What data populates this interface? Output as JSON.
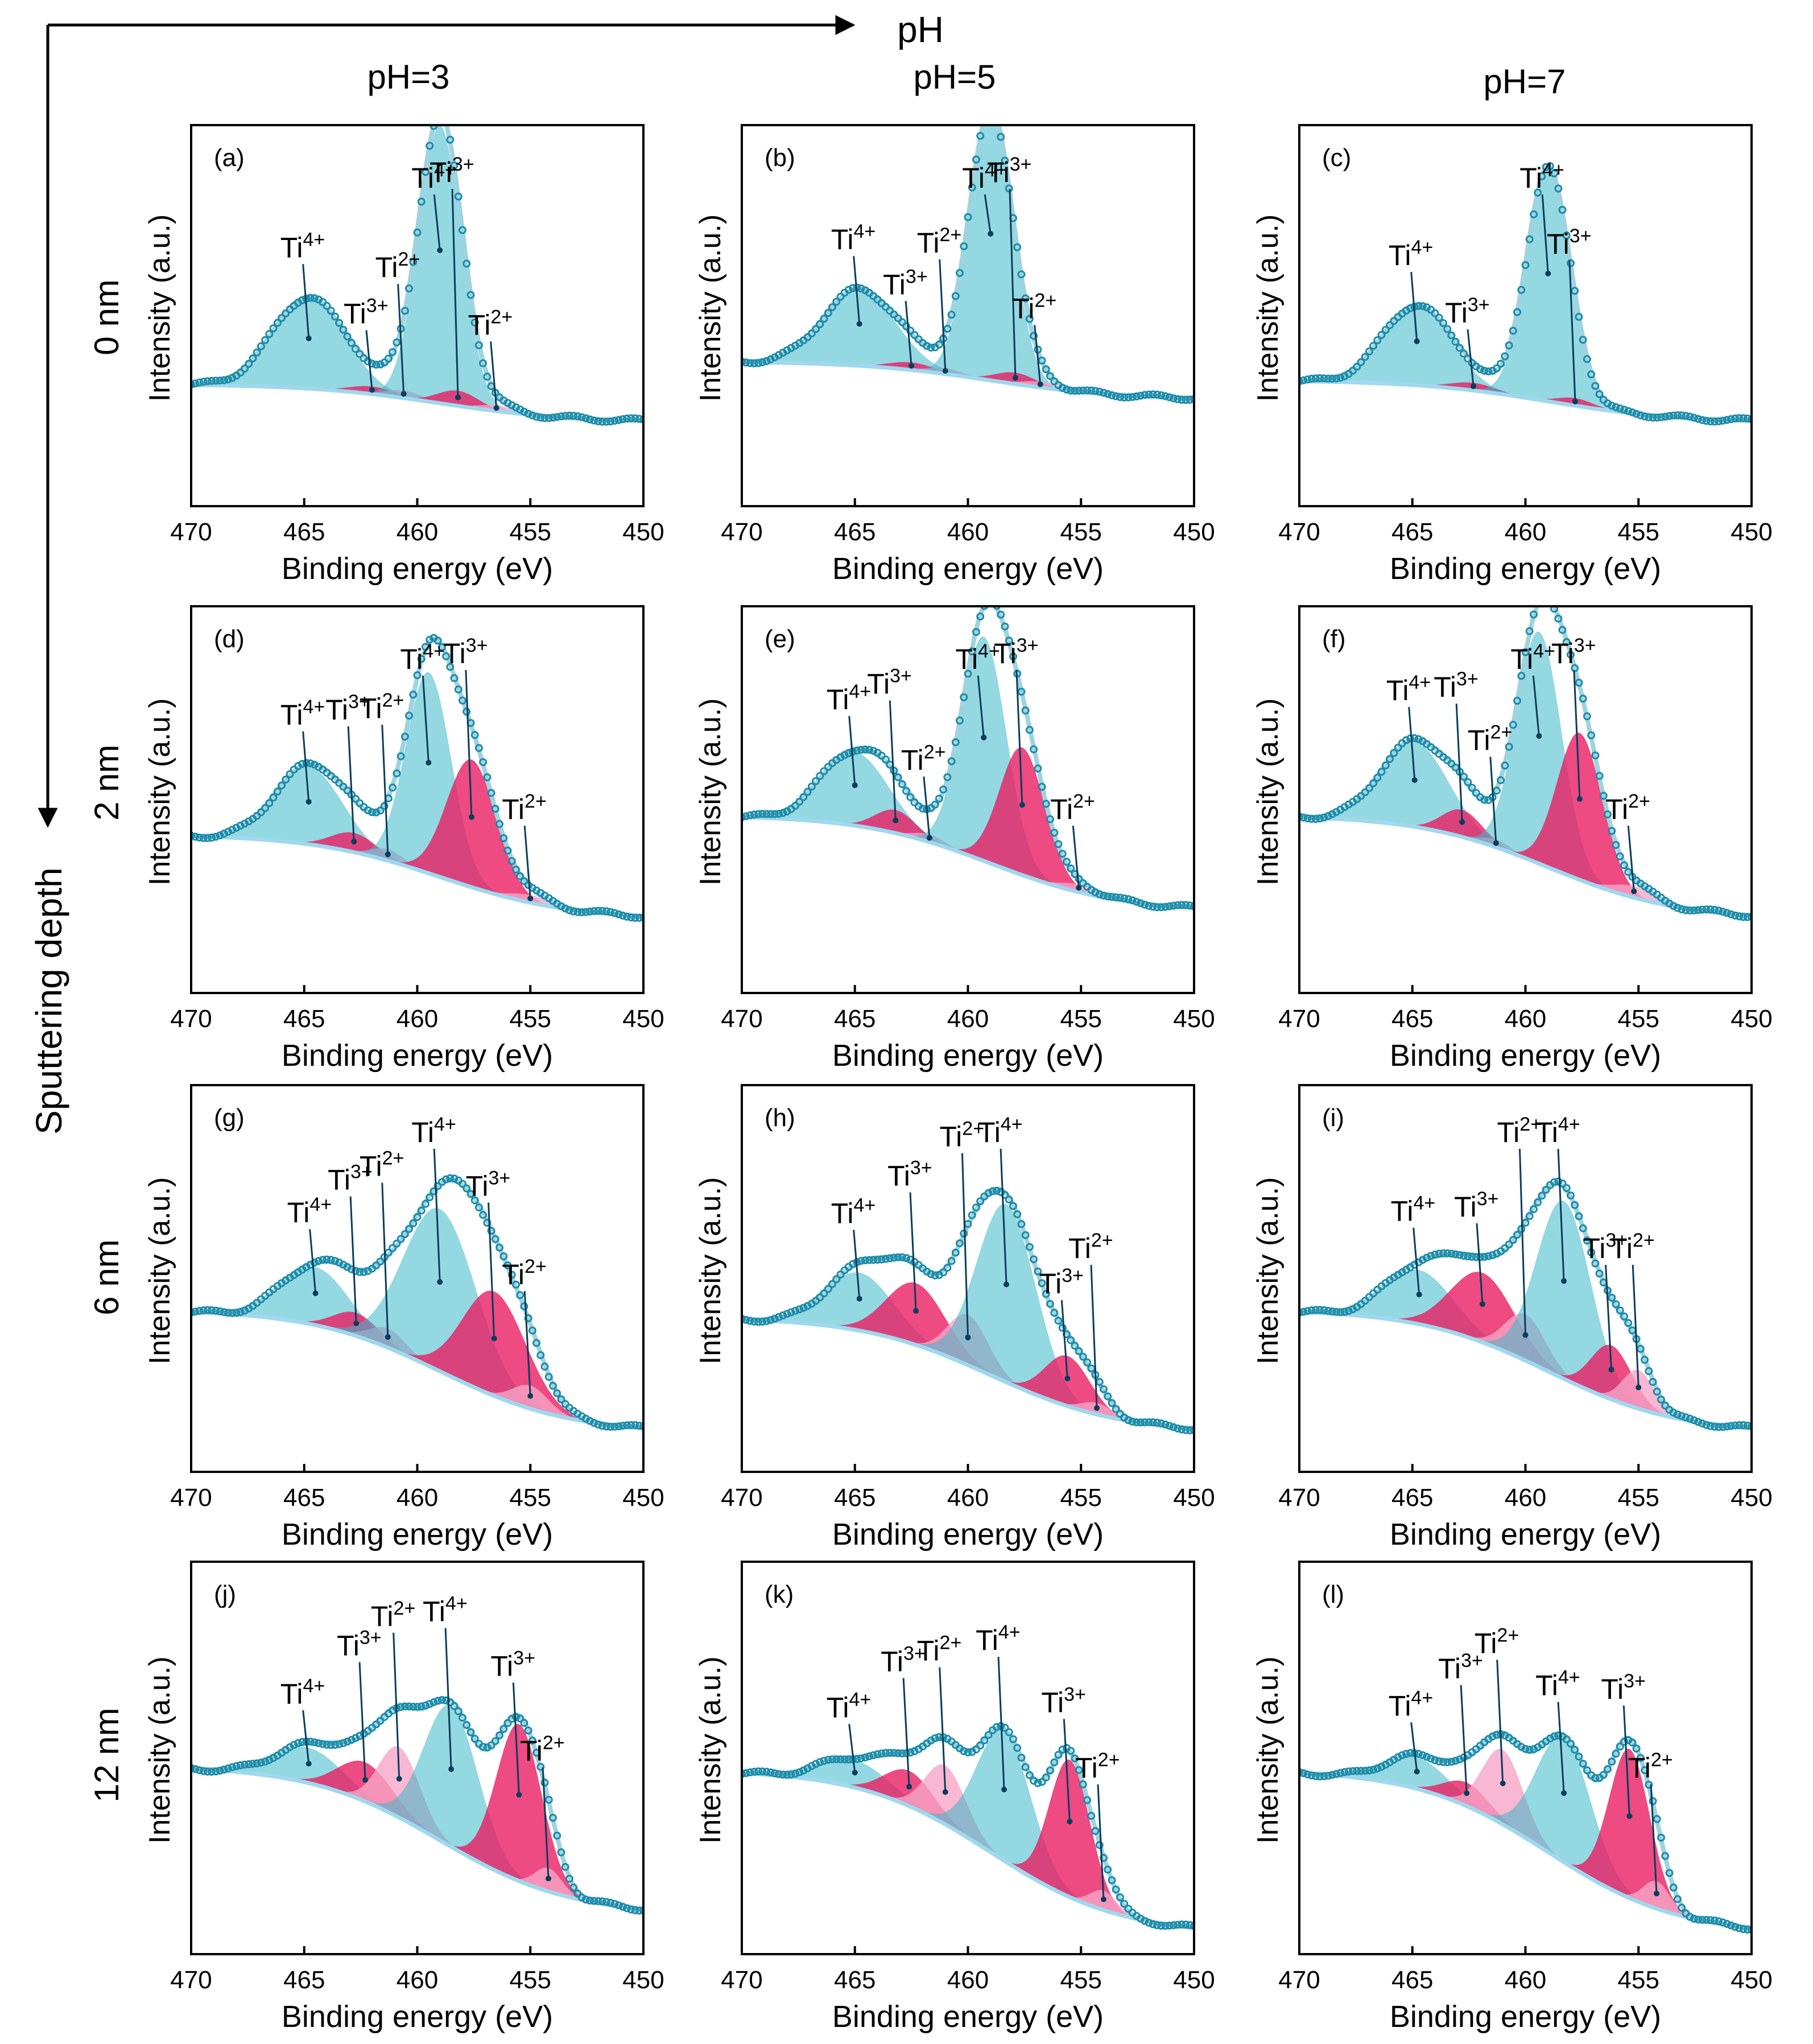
{
  "figure": {
    "ph_axis_label": "pH",
    "depth_axis_label": "Sputtering depth",
    "column_labels": [
      "pH=3",
      "pH=5",
      "pH=7"
    ],
    "row_labels": [
      "0 nm",
      "2 nm",
      "6 nm",
      "12 nm"
    ],
    "xlabel": "Binding energy (eV)",
    "ylabel": "Intensity (a.u.)",
    "xticks": [
      470,
      465,
      460,
      455,
      450
    ],
    "colors": {
      "data_points": "#1b8ba8",
      "fit_envelope": "#9fd3df",
      "background_line": "#9fd8ef",
      "ti4_fill": "#3cb8c9",
      "ti3_fill": "#e91e63",
      "ti2_fill": "#f6a5c7"
    }
  },
  "chart_data": [
    {
      "type": "area",
      "panel": "(a)",
      "ph": "pH=3",
      "depth": "0 nm",
      "xlim": [
        470,
        450
      ],
      "ylim": [
        0,
        1
      ],
      "baseline": {
        "left": 0.32,
        "right": 0.22
      },
      "peaks": [
        {
          "state": "Ti4+",
          "label": "Ti",
          "sup": "4+",
          "center": 464.8,
          "height": 0.24,
          "width": 1.6
        },
        {
          "state": "Ti3+",
          "label": "Ti",
          "sup": "3+",
          "center": 462.0,
          "height": 0.02,
          "width": 1.0
        },
        {
          "state": "Ti2+",
          "label": "Ti",
          "sup": "2+",
          "center": 460.6,
          "height": 0.02,
          "width": 0.8
        },
        {
          "state": "Ti4+",
          "label": "Ti",
          "sup": "4+",
          "center": 459.0,
          "height": 0.73,
          "width": 0.95
        },
        {
          "state": "Ti3+",
          "label": "Ti",
          "sup": "3+",
          "center": 458.2,
          "height": 0.04,
          "width": 0.9
        },
        {
          "state": "Ti2+",
          "label": "Ti",
          "sup": "2+",
          "center": 456.5,
          "height": 0.015,
          "width": 0.8
        }
      ]
    },
    {
      "type": "area",
      "panel": "(b)",
      "ph": "pH=5",
      "depth": "0 nm",
      "xlim": [
        470,
        450
      ],
      "ylim": [
        0,
        1
      ],
      "baseline": {
        "left": 0.38,
        "right": 0.28
      },
      "peaks": [
        {
          "state": "Ti4+",
          "label": "Ti",
          "sup": "4+",
          "center": 464.8,
          "height": 0.2,
          "width": 1.6
        },
        {
          "state": "Ti3+",
          "label": "Ti",
          "sup": "3+",
          "center": 462.5,
          "height": 0.02,
          "width": 1.0
        },
        {
          "state": "Ti2+",
          "label": "Ti",
          "sup": "2+",
          "center": 461.0,
          "height": 0.015,
          "width": 0.8
        },
        {
          "state": "Ti4+",
          "label": "Ti",
          "sup": "4+",
          "center": 459.0,
          "height": 0.7,
          "width": 0.95
        },
        {
          "state": "Ti3+",
          "label": "Ti",
          "sup": "3+",
          "center": 457.9,
          "height": 0.03,
          "width": 0.9
        },
        {
          "state": "Ti2+",
          "label": "Ti",
          "sup": "2+",
          "center": 456.8,
          "height": 0.015,
          "width": 0.8
        }
      ]
    },
    {
      "type": "area",
      "panel": "(c)",
      "ph": "pH=7",
      "depth": "0 nm",
      "xlim": [
        470,
        450
      ],
      "ylim": [
        0,
        1
      ],
      "baseline": {
        "left": 0.33,
        "right": 0.22
      },
      "peaks": [
        {
          "state": "Ti4+",
          "label": "Ti",
          "sup": "4+",
          "center": 464.8,
          "height": 0.21,
          "width": 1.5
        },
        {
          "state": "Ti3+",
          "label": "Ti",
          "sup": "3+",
          "center": 462.3,
          "height": 0.02,
          "width": 1.0
        },
        {
          "state": "Ti4+",
          "label": "Ti",
          "sup": "4+",
          "center": 459.0,
          "height": 0.61,
          "width": 0.95
        },
        {
          "state": "Ti3+",
          "label": "Ti",
          "sup": "3+",
          "center": 457.8,
          "height": 0.02,
          "width": 0.8
        }
      ]
    },
    {
      "type": "area",
      "panel": "(d)",
      "ph": "pH=3",
      "depth": "2 nm",
      "xlim": [
        470,
        450
      ],
      "ylim": [
        0,
        1
      ],
      "baseline": {
        "left": 0.41,
        "right": 0.19
      },
      "peaks": [
        {
          "state": "Ti4+",
          "label": "Ti",
          "sup": "4+",
          "center": 464.8,
          "height": 0.2,
          "width": 1.5
        },
        {
          "state": "Ti3+",
          "label": "Ti",
          "sup": "3+",
          "center": 462.8,
          "height": 0.05,
          "width": 1.0
        },
        {
          "state": "Ti2+",
          "label": "Ti",
          "sup": "2+",
          "center": 461.3,
          "height": 0.03,
          "width": 0.7
        },
        {
          "state": "Ti4+",
          "label": "Ti",
          "sup": "4+",
          "center": 459.5,
          "height": 0.52,
          "width": 1.0
        },
        {
          "state": "Ti3+",
          "label": "Ti",
          "sup": "3+",
          "center": 457.6,
          "height": 0.33,
          "width": 1.1
        },
        {
          "state": "Ti2+",
          "label": "Ti",
          "sup": "2+",
          "center": 455.0,
          "height": 0.02,
          "width": 0.9
        }
      ]
    },
    {
      "type": "area",
      "panel": "(e)",
      "ph": "pH=5",
      "depth": "2 nm",
      "xlim": [
        470,
        450
      ],
      "ylim": [
        0,
        1
      ],
      "baseline": {
        "left": 0.46,
        "right": 0.21
      },
      "peaks": [
        {
          "state": "Ti4+",
          "label": "Ti",
          "sup": "4+",
          "center": 465.0,
          "height": 0.19,
          "width": 1.5
        },
        {
          "state": "Ti3+",
          "label": "Ti",
          "sup": "3+",
          "center": 463.2,
          "height": 0.06,
          "width": 0.9
        },
        {
          "state": "Ti2+",
          "label": "Ti",
          "sup": "2+",
          "center": 461.7,
          "height": 0.02,
          "width": 0.7
        },
        {
          "state": "Ti4+",
          "label": "Ti",
          "sup": "4+",
          "center": 459.3,
          "height": 0.58,
          "width": 1.0
        },
        {
          "state": "Ti3+",
          "label": "Ti",
          "sup": "3+",
          "center": 457.6,
          "height": 0.33,
          "width": 1.0
        },
        {
          "state": "Ti2+",
          "label": "Ti",
          "sup": "2+",
          "center": 455.1,
          "height": 0.02,
          "width": 0.8
        }
      ]
    },
    {
      "type": "area",
      "panel": "(f)",
      "ph": "pH=7",
      "depth": "2 nm",
      "xlim": [
        470,
        450
      ],
      "ylim": [
        0,
        1
      ],
      "baseline": {
        "left": 0.46,
        "right": 0.19
      },
      "peaks": [
        {
          "state": "Ti4+",
          "label": "Ti",
          "sup": "4+",
          "center": 464.9,
          "height": 0.22,
          "width": 1.5
        },
        {
          "state": "Ti3+",
          "label": "Ti",
          "sup": "3+",
          "center": 462.8,
          "height": 0.07,
          "width": 0.9
        },
        {
          "state": "Ti2+",
          "label": "Ti",
          "sup": "2+",
          "center": 461.3,
          "height": 0.02,
          "width": 0.7
        },
        {
          "state": "Ti4+",
          "label": "Ti",
          "sup": "4+",
          "center": 459.4,
          "height": 0.6,
          "width": 1.0
        },
        {
          "state": "Ti3+",
          "label": "Ti",
          "sup": "3+",
          "center": 457.6,
          "height": 0.38,
          "width": 1.0
        },
        {
          "state": "Ti2+",
          "label": "Ti",
          "sup": "2+",
          "center": 455.2,
          "height": 0.03,
          "width": 0.9
        }
      ]
    },
    {
      "type": "area",
      "panel": "(g)",
      "ph": "pH=3",
      "depth": "6 nm",
      "xlim": [
        470,
        450
      ],
      "ylim": [
        0,
        1
      ],
      "baseline": {
        "left": 0.42,
        "right": 0.1
      },
      "peaks": [
        {
          "state": "Ti4+",
          "label": "Ti",
          "sup": "4+",
          "center": 464.5,
          "height": 0.15,
          "width": 1.5
        },
        {
          "state": "Ti3+",
          "label": "Ti",
          "sup": "3+",
          "center": 462.7,
          "height": 0.06,
          "width": 1.0
        },
        {
          "state": "Ti2+",
          "label": "Ti",
          "sup": "2+",
          "center": 461.3,
          "height": 0.05,
          "width": 0.8
        },
        {
          "state": "Ti4+",
          "label": "Ti",
          "sup": "4+",
          "center": 459.0,
          "height": 0.42,
          "width": 1.6
        },
        {
          "state": "Ti3+",
          "label": "Ti",
          "sup": "3+",
          "center": 456.6,
          "height": 0.27,
          "width": 1.4
        },
        {
          "state": "Ti2+",
          "label": "Ti",
          "sup": "2+",
          "center": 455.0,
          "height": 0.06,
          "width": 0.8
        }
      ]
    },
    {
      "type": "area",
      "panel": "(h)",
      "ph": "pH=5",
      "depth": "6 nm",
      "xlim": [
        470,
        450
      ],
      "ylim": [
        0,
        1
      ],
      "baseline": {
        "left": 0.4,
        "right": 0.1
      },
      "peaks": [
        {
          "state": "Ti4+",
          "label": "Ti",
          "sup": "4+",
          "center": 464.8,
          "height": 0.15,
          "width": 1.5
        },
        {
          "state": "Ti3+",
          "label": "Ti",
          "sup": "3+",
          "center": 462.3,
          "height": 0.16,
          "width": 1.3
        },
        {
          "state": "Ti2+",
          "label": "Ti",
          "sup": "2+",
          "center": 460.0,
          "height": 0.13,
          "width": 0.9
        },
        {
          "state": "Ti4+",
          "label": "Ti",
          "sup": "4+",
          "center": 458.3,
          "height": 0.46,
          "width": 1.3
        },
        {
          "state": "Ti3+",
          "label": "Ti",
          "sup": "3+",
          "center": 455.6,
          "height": 0.13,
          "width": 1.0
        },
        {
          "state": "Ti2+",
          "label": "Ti",
          "sup": "2+",
          "center": 454.3,
          "height": 0.03,
          "width": 0.7
        }
      ]
    },
    {
      "type": "area",
      "panel": "(i)",
      "ph": "pH=7",
      "depth": "6 nm",
      "xlim": [
        470,
        450
      ],
      "ylim": [
        0,
        1
      ],
      "baseline": {
        "left": 0.42,
        "right": 0.1
      },
      "peaks": [
        {
          "state": "Ti4+",
          "label": "Ti",
          "sup": "4+",
          "center": 464.7,
          "height": 0.14,
          "width": 1.5
        },
        {
          "state": "Ti3+",
          "label": "Ti",
          "sup": "3+",
          "center": 461.9,
          "height": 0.18,
          "width": 1.4
        },
        {
          "state": "Ti2+",
          "label": "Ti",
          "sup": "2+",
          "center": 460.0,
          "height": 0.12,
          "width": 0.9
        },
        {
          "state": "Ti4+",
          "label": "Ti",
          "sup": "4+",
          "center": 458.3,
          "height": 0.46,
          "width": 1.2
        },
        {
          "state": "Ti3+",
          "label": "Ti",
          "sup": "3+",
          "center": 456.2,
          "height": 0.14,
          "width": 0.9
        },
        {
          "state": "Ti2+",
          "label": "Ti",
          "sup": "2+",
          "center": 455.0,
          "height": 0.1,
          "width": 0.7
        }
      ]
    },
    {
      "type": "area",
      "panel": "(j)",
      "ph": "pH=3",
      "depth": "12 nm",
      "xlim": [
        470,
        450
      ],
      "ylim": [
        0,
        1
      ],
      "baseline": {
        "left": 0.48,
        "right": 0.1
      },
      "peaks": [
        {
          "state": "Ti4+",
          "label": "Ti",
          "sup": "4+",
          "center": 464.8,
          "height": 0.09,
          "width": 1.5
        },
        {
          "state": "Ti3+",
          "label": "Ti",
          "sup": "3+",
          "center": 462.3,
          "height": 0.1,
          "width": 1.2
        },
        {
          "state": "Ti2+",
          "label": "Ti",
          "sup": "2+",
          "center": 460.8,
          "height": 0.18,
          "width": 0.9
        },
        {
          "state": "Ti4+",
          "label": "Ti",
          "sup": "4+",
          "center": 458.5,
          "height": 0.36,
          "width": 1.2
        },
        {
          "state": "Ti3+",
          "label": "Ti",
          "sup": "3+",
          "center": 455.5,
          "height": 0.4,
          "width": 1.0
        },
        {
          "state": "Ti2+",
          "label": "Ti",
          "sup": "2+",
          "center": 454.2,
          "height": 0.06,
          "width": 0.6
        }
      ]
    },
    {
      "type": "area",
      "panel": "(k)",
      "ph": "pH=5",
      "depth": "12 nm",
      "xlim": [
        470,
        450
      ],
      "ylim": [
        0,
        1
      ],
      "baseline": {
        "left": 0.47,
        "right": 0.05
      },
      "peaks": [
        {
          "state": "Ti4+",
          "label": "Ti",
          "sup": "4+",
          "center": 465.0,
          "height": 0.07,
          "width": 1.5
        },
        {
          "state": "Ti3+",
          "label": "Ti",
          "sup": "3+",
          "center": 462.6,
          "height": 0.09,
          "width": 1.1
        },
        {
          "state": "Ti2+",
          "label": "Ti",
          "sup": "2+",
          "center": 461.0,
          "height": 0.15,
          "width": 0.9
        },
        {
          "state": "Ti4+",
          "label": "Ti",
          "sup": "4+",
          "center": 458.4,
          "height": 0.33,
          "width": 1.2
        },
        {
          "state": "Ti3+",
          "label": "Ti",
          "sup": "3+",
          "center": 455.5,
          "height": 0.35,
          "width": 0.9
        },
        {
          "state": "Ti2+",
          "label": "Ti",
          "sup": "2+",
          "center": 454.0,
          "height": 0.05,
          "width": 0.6
        }
      ]
    },
    {
      "type": "area",
      "panel": "(l)",
      "ph": "pH=7",
      "depth": "12 nm",
      "xlim": [
        470,
        450
      ],
      "ylim": [
        0,
        1
      ],
      "baseline": {
        "left": 0.47,
        "right": 0.05
      },
      "peaks": [
        {
          "state": "Ti4+",
          "label": "Ti",
          "sup": "4+",
          "center": 464.8,
          "height": 0.08,
          "width": 1.4
        },
        {
          "state": "Ti3+",
          "label": "Ti",
          "sup": "3+",
          "center": 462.6,
          "height": 0.06,
          "width": 1.0
        },
        {
          "state": "Ti2+",
          "label": "Ti",
          "sup": "2+",
          "center": 461.0,
          "height": 0.19,
          "width": 0.9
        },
        {
          "state": "Ti4+",
          "label": "Ti",
          "sup": "4+",
          "center": 458.3,
          "height": 0.32,
          "width": 1.2
        },
        {
          "state": "Ti3+",
          "label": "Ti",
          "sup": "3+",
          "center": 455.4,
          "height": 0.38,
          "width": 0.9
        },
        {
          "state": "Ti2+",
          "label": "Ti",
          "sup": "2+",
          "center": 454.2,
          "height": 0.07,
          "width": 0.6
        }
      ]
    }
  ]
}
